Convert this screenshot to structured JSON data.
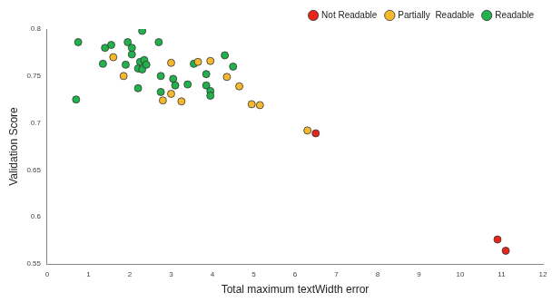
{
  "chart_data": {
    "type": "scatter",
    "x_label": "Total maximum textWidth error",
    "y_label": "Validation Score",
    "xlim": [
      0,
      12
    ],
    "xticks": [
      0,
      1,
      2,
      3,
      4,
      5,
      6,
      7,
      8,
      9,
      10,
      11,
      12
    ],
    "ylim": [
      0.55,
      0.8
    ],
    "yticks": [
      0.55,
      0.6,
      0.65,
      0.7,
      0.75,
      0.8
    ],
    "grid": false,
    "legend": "upper right",
    "marker": "circle",
    "series": [
      {
        "name": "Not Readable",
        "color": "#e8251c",
        "x": [
          6.5,
          10.9,
          11.1
        ],
        "values": [
          0.689,
          0.576,
          0.564
        ]
      },
      {
        "name": "Partially  Readable",
        "color": "#f5b82e",
        "x": [
          1.6,
          1.85,
          2.8,
          3.0,
          3.0,
          3.25,
          3.65,
          3.95,
          4.35,
          4.65,
          4.95,
          5.15,
          6.3
        ],
        "values": [
          0.77,
          0.75,
          0.724,
          0.764,
          0.731,
          0.723,
          0.765,
          0.766,
          0.749,
          0.739,
          0.72,
          0.719,
          0.692
        ]
      },
      {
        "name": "Readable",
        "color": "#22b14c",
        "x": [
          0.7,
          0.75,
          1.35,
          1.4,
          1.55,
          1.9,
          1.95,
          2.05,
          2.05,
          2.2,
          2.25,
          2.3,
          2.3,
          2.35,
          2.4,
          2.7,
          2.75,
          2.75,
          2.2,
          3.05,
          3.1,
          3.4,
          3.55,
          3.85,
          3.85,
          3.95,
          3.95,
          4.3,
          4.5
        ],
        "values": [
          0.725,
          0.786,
          0.763,
          0.78,
          0.783,
          0.762,
          0.786,
          0.773,
          0.78,
          0.758,
          0.765,
          0.757,
          0.798,
          0.767,
          0.762,
          0.786,
          0.75,
          0.733,
          0.737,
          0.747,
          0.74,
          0.741,
          0.763,
          0.752,
          0.74,
          0.734,
          0.729,
          0.772,
          0.76
        ]
      }
    ]
  }
}
